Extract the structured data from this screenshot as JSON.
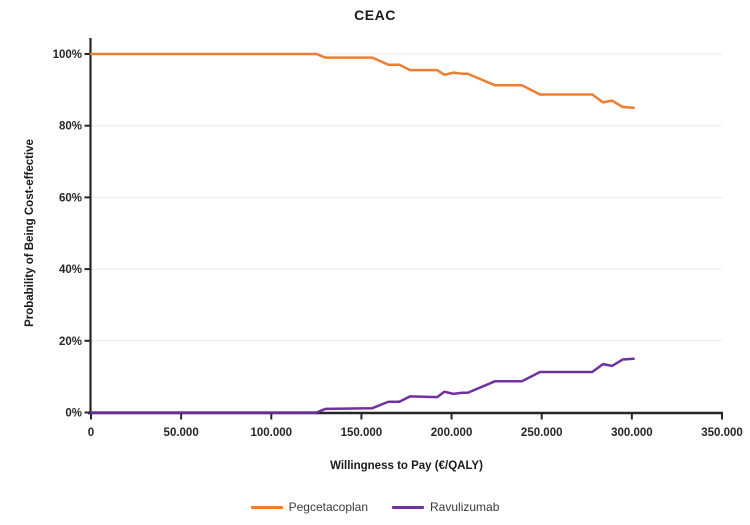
{
  "chart_data": {
    "type": "line",
    "title": "CEAC",
    "xlabel": "Willingness to Pay (€/QALY)",
    "ylabel": "Probability of Being Cost-effective",
    "xlim": [
      0,
      350000
    ],
    "ylim": [
      0,
      100
    ],
    "grid": "horizontal-light-gray",
    "legend_position": "bottom-center",
    "background_color": "#ffffff",
    "axis_color": "#262626",
    "gridline_color": "#EAEAEA",
    "x_ticks": [
      {
        "value": 0,
        "label": "0"
      },
      {
        "value": 50000,
        "label": "50.000"
      },
      {
        "value": 100000,
        "label": "100.000"
      },
      {
        "value": 150000,
        "label": "150.000"
      },
      {
        "value": 200000,
        "label": "200.000"
      },
      {
        "value": 250000,
        "label": "250.000"
      },
      {
        "value": 300000,
        "label": "300.000"
      },
      {
        "value": 350000,
        "label": "350.000"
      }
    ],
    "y_ticks": [
      {
        "value": 0,
        "label": "0%"
      },
      {
        "value": 20,
        "label": "20%"
      },
      {
        "value": 40,
        "label": "40%"
      },
      {
        "value": 60,
        "label": "60%"
      },
      {
        "value": 80,
        "label": "80%"
      },
      {
        "value": 100,
        "label": "100%"
      }
    ],
    "series": [
      {
        "name": "Pegcetacoplan",
        "color": "#ED7D31",
        "x": [
          0,
          125000,
          130000,
          156000,
          165000,
          171000,
          177000,
          192000,
          196000,
          201000,
          206000,
          209000,
          224000,
          239000,
          249000,
          278000,
          284000,
          289000,
          295000,
          301000
        ],
        "y": [
          100,
          100,
          99,
          99,
          97,
          97,
          95.5,
          95.5,
          94.2,
          94.8,
          94.5,
          94.5,
          91.3,
          91.3,
          88.7,
          88.7,
          86.5,
          87,
          85.2,
          85
        ]
      },
      {
        "name": "Ravulizumab",
        "color": "#7030A0",
        "x": [
          0,
          125000,
          130000,
          156000,
          165000,
          171000,
          177000,
          192000,
          196000,
          201000,
          206000,
          209000,
          224000,
          239000,
          249000,
          278000,
          284000,
          289000,
          295000,
          301000
        ],
        "y": [
          0,
          0,
          1,
          1.2,
          3,
          3,
          4.5,
          4.3,
          5.8,
          5.2,
          5.5,
          5.5,
          8.7,
          8.7,
          11.3,
          11.3,
          13.5,
          13,
          14.8,
          15
        ]
      }
    ]
  }
}
